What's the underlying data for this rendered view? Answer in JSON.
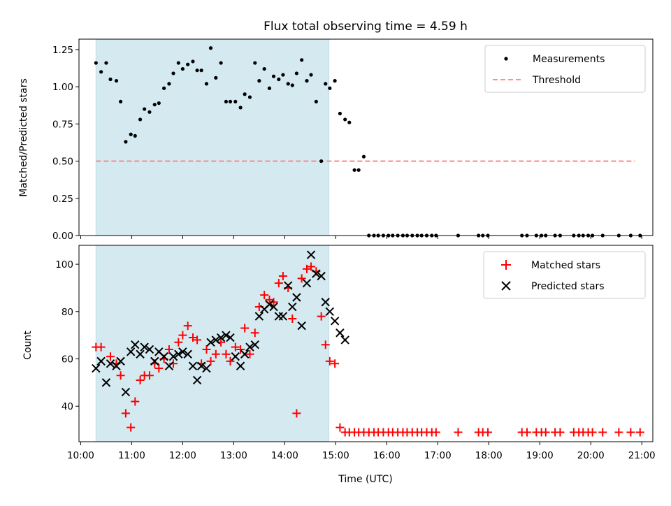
{
  "chart_data": [
    {
      "type": "scatter",
      "title": "Flux total observing time = 4.59 h",
      "xlabel": "",
      "ylabel": "Matched/Predicted stars",
      "ylim": [
        0,
        1.32
      ],
      "xlim": [
        "09:58",
        "21:13"
      ],
      "shaded_interval": {
        "start": "10:18",
        "end": "14:52",
        "color": "#d4eaf0"
      },
      "grid": false,
      "legend": "top-right",
      "legend_entries": [
        "Measurements",
        "Threshold"
      ],
      "y_ticks": [
        "0.00",
        "0.25",
        "0.50",
        "0.75",
        "1.00",
        "1.25"
      ],
      "threshold": {
        "value": 0.5,
        "x_start": "10:18",
        "x_end": "20:52",
        "color": "#ff7f7f"
      },
      "series": [
        {
          "name": "Measurements",
          "color": "#000000",
          "x": [
            "10:18",
            "10:24",
            "10:30",
            "10:35",
            "10:42",
            "10:47",
            "10:53",
            "10:59",
            "11:04",
            "11:10",
            "11:15",
            "11:21",
            "11:27",
            "11:32",
            "11:38",
            "11:44",
            "11:49",
            "11:55",
            "12:00",
            "12:06",
            "12:12",
            "12:17",
            "12:22",
            "12:28",
            "12:33",
            "12:39",
            "12:45",
            "12:51",
            "12:56",
            "13:02",
            "13:08",
            "13:13",
            "13:19",
            "13:25",
            "13:30",
            "13:36",
            "13:42",
            "13:47",
            "13:53",
            "13:58",
            "14:04",
            "14:09",
            "14:14",
            "14:20",
            "14:26",
            "14:31",
            "14:37",
            "14:43",
            "14:48",
            "14:53",
            "14:59",
            "15:05",
            "15:11",
            "15:16",
            "15:22",
            "15:27",
            "15:33",
            "15:39",
            "15:45",
            "15:50",
            "15:56",
            "16:02",
            "16:07",
            "16:13",
            "16:19",
            "16:24",
            "16:30",
            "16:36",
            "16:41",
            "16:47",
            "16:53",
            "16:58",
            "17:24",
            "17:48",
            "17:53",
            "17:59",
            "18:39",
            "18:45",
            "18:56",
            "19:02",
            "19:07",
            "19:18",
            "19:24",
            "19:40",
            "19:46",
            "19:51",
            "19:57",
            "20:02",
            "20:14",
            "20:33",
            "20:47",
            "20:58"
          ],
          "y": [
            1.16,
            1.1,
            1.16,
            1.05,
            1.04,
            0.9,
            0.63,
            0.68,
            0.67,
            0.78,
            0.85,
            0.83,
            0.88,
            0.89,
            0.99,
            1.02,
            1.09,
            1.16,
            1.12,
            1.15,
            1.17,
            1.11,
            1.11,
            1.02,
            1.26,
            1.06,
            1.16,
            0.9,
            0.9,
            0.9,
            0.86,
            0.95,
            0.93,
            1.16,
            1.04,
            1.12,
            0.99,
            1.07,
            1.05,
            1.08,
            1.02,
            1.01,
            1.09,
            1.18,
            1.04,
            1.08,
            0.9,
            0.5,
            1.02,
            0.99,
            1.04,
            0.82,
            0.78,
            0.76,
            0.44,
            0.44,
            0.53,
            0.0,
            0.0,
            0.0,
            0.0,
            0.0,
            0.0,
            0.0,
            0.0,
            0.0,
            0.0,
            0.0,
            0.0,
            0.0,
            0.0,
            0.0,
            0.0,
            0.0,
            0.0,
            0.0,
            0.0,
            0.0,
            0.0,
            0.0,
            0.0,
            0.0,
            0.0,
            0.0,
            0.0,
            0.0,
            0.0,
            0.0,
            0.0,
            0.0,
            0.0,
            0.0
          ]
        }
      ]
    },
    {
      "type": "scatter",
      "title": "",
      "xlabel": "Time (UTC)",
      "ylabel": "Count",
      "ylim": [
        25,
        108
      ],
      "xlim": [
        "09:58",
        "21:13"
      ],
      "shaded_interval": {
        "start": "10:18",
        "end": "14:52",
        "color": "#d4eaf0"
      },
      "grid": false,
      "legend": "top-right",
      "legend_entries": [
        "Matched stars",
        "Predicted stars"
      ],
      "x_ticks": [
        "10:00",
        "11:00",
        "12:00",
        "13:00",
        "14:00",
        "15:00",
        "16:00",
        "17:00",
        "18:00",
        "19:00",
        "20:00",
        "21:00"
      ],
      "y_ticks": [
        "40",
        "60",
        "80",
        "100"
      ],
      "series": [
        {
          "name": "Matched stars",
          "marker": "plus",
          "color": "#ff0000",
          "x": [
            "10:18",
            "10:24",
            "10:35",
            "10:42",
            "10:47",
            "10:53",
            "10:59",
            "11:04",
            "11:10",
            "11:15",
            "11:21",
            "11:27",
            "11:32",
            "11:38",
            "11:44",
            "11:49",
            "11:55",
            "12:00",
            "12:06",
            "12:12",
            "12:17",
            "12:22",
            "12:28",
            "12:33",
            "12:39",
            "12:45",
            "12:51",
            "12:56",
            "13:02",
            "13:08",
            "13:13",
            "13:19",
            "13:25",
            "13:30",
            "13:36",
            "13:42",
            "13:47",
            "13:53",
            "13:58",
            "14:04",
            "14:09",
            "14:14",
            "14:20",
            "14:26",
            "14:31",
            "14:37",
            "14:43",
            "14:48",
            "14:53",
            "14:59",
            "15:05",
            "15:11",
            "15:16",
            "15:22",
            "15:27",
            "15:33",
            "15:39",
            "15:45",
            "15:50",
            "15:56",
            "16:02",
            "16:07",
            "16:13",
            "16:19",
            "16:24",
            "16:30",
            "16:36",
            "16:41",
            "16:47",
            "16:53",
            "16:58",
            "17:24",
            "17:48",
            "17:53",
            "17:59",
            "18:39",
            "18:45",
            "18:56",
            "19:02",
            "19:07",
            "19:18",
            "19:24",
            "19:40",
            "19:46",
            "19:51",
            "19:57",
            "20:02",
            "20:14",
            "20:33",
            "20:47",
            "20:58"
          ],
          "y": [
            65,
            65,
            61,
            58,
            53,
            37,
            31,
            42,
            51,
            53,
            53,
            58,
            56,
            60,
            64,
            58,
            67,
            70,
            74,
            69,
            68,
            58,
            64,
            59,
            62,
            67,
            62,
            59,
            65,
            64,
            73,
            62,
            71,
            82,
            87,
            85,
            84,
            92,
            95,
            90,
            77,
            37,
            94,
            98,
            99,
            97,
            78,
            66,
            59,
            58,
            31,
            29,
            29,
            29,
            29,
            29,
            29,
            29,
            29,
            29,
            29,
            29,
            29,
            29,
            29,
            29,
            29,
            29,
            29,
            29,
            29,
            29,
            29,
            29,
            29,
            29,
            29,
            29,
            29,
            29,
            29,
            29,
            29,
            29,
            29,
            29,
            29,
            29,
            29,
            29,
            29
          ]
        },
        {
          "name": "Predicted stars",
          "marker": "x",
          "color": "#000000",
          "x": [
            "10:18",
            "10:24",
            "10:30",
            "10:35",
            "10:42",
            "10:47",
            "10:53",
            "10:59",
            "11:04",
            "11:10",
            "11:15",
            "11:21",
            "11:27",
            "11:32",
            "11:38",
            "11:44",
            "11:49",
            "11:55",
            "12:00",
            "12:06",
            "12:12",
            "12:17",
            "12:22",
            "12:28",
            "12:33",
            "12:39",
            "12:45",
            "12:51",
            "12:56",
            "13:02",
            "13:08",
            "13:13",
            "13:19",
            "13:25",
            "13:30",
            "13:36",
            "13:42",
            "13:47",
            "13:53",
            "13:58",
            "14:04",
            "14:09",
            "14:14",
            "14:20",
            "14:26",
            "14:31",
            "14:37",
            "14:43",
            "14:48",
            "14:53",
            "14:59",
            "15:05",
            "15:11"
          ],
          "y": [
            56,
            59,
            50,
            58,
            57,
            59,
            46,
            63,
            66,
            62,
            65,
            64,
            59,
            63,
            61,
            57,
            61,
            62,
            63,
            62,
            57,
            51,
            57,
            56,
            67,
            68,
            69,
            70,
            69,
            61,
            57,
            62,
            65,
            66,
            78,
            81,
            83,
            82,
            78,
            78,
            91,
            82,
            86,
            74,
            92,
            104,
            96,
            95,
            84,
            80,
            76,
            71,
            68
          ]
        }
      ]
    }
  ]
}
